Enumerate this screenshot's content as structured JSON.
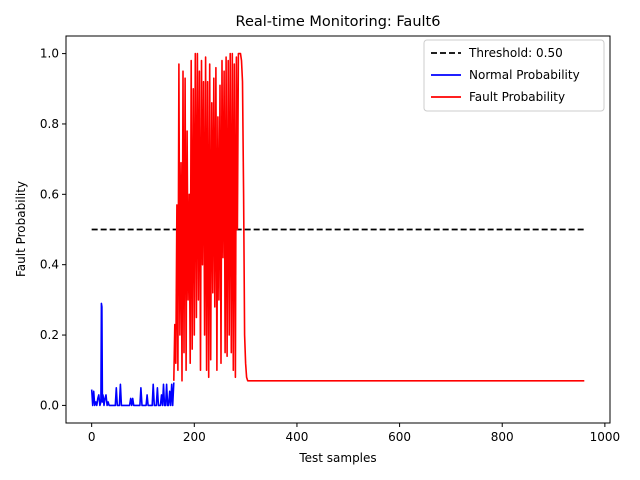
{
  "chart_data": {
    "type": "line",
    "title": "Real-time Monitoring: Fault6",
    "xlabel": "Test samples",
    "ylabel": "Fault Probability",
    "xlim": [
      -50,
      1010
    ],
    "ylim": [
      -0.05,
      1.05
    ],
    "xticks": [
      0,
      200,
      400,
      600,
      800,
      1000
    ],
    "xtick_labels": [
      "0",
      "200",
      "400",
      "600",
      "800",
      "1000"
    ],
    "yticks": [
      0.0,
      0.2,
      0.4,
      0.6,
      0.8,
      1.0
    ],
    "ytick_labels": [
      "0.0",
      "0.2",
      "0.4",
      "0.6",
      "0.8",
      "1.0"
    ],
    "grid": false,
    "legend_position": "top-right",
    "threshold": {
      "name": "Threshold: 0.50",
      "value": 0.5,
      "x": [
        0,
        960
      ],
      "color": "#000000",
      "style": "dashed"
    },
    "series": [
      {
        "name": "Normal Probability",
        "color": "#0000ff",
        "x": [
          0,
          2,
          4,
          6,
          8,
          10,
          12,
          14,
          16,
          18,
          19,
          20,
          21,
          22,
          24,
          26,
          28,
          30,
          32,
          34,
          36,
          38,
          40,
          42,
          44,
          46,
          48,
          50,
          52,
          54,
          56,
          58,
          60,
          62,
          64,
          66,
          68,
          70,
          72,
          74,
          76,
          78,
          80,
          82,
          84,
          86,
          88,
          90,
          92,
          94,
          96,
          98,
          100,
          102,
          104,
          106,
          108,
          110,
          112,
          114,
          116,
          118,
          120,
          122,
          124,
          126,
          128,
          130,
          132,
          134,
          136,
          138,
          140,
          142,
          144,
          146,
          148,
          150,
          152,
          154,
          156,
          158,
          160
        ],
        "values": [
          0.045,
          0.0,
          0.04,
          0.0,
          0.01,
          0.0,
          0.02,
          0.03,
          0.0,
          0.01,
          0.29,
          0.28,
          0.01,
          0.03,
          0.0,
          0.02,
          0.03,
          0.0,
          0.01,
          0.0,
          0.0,
          0.0,
          0.0,
          0.0,
          0.0,
          0.0,
          0.05,
          0.0,
          0.0,
          0.0,
          0.06,
          0.0,
          0.0,
          0.0,
          0.0,
          0.0,
          0.0,
          0.0,
          0.0,
          0.0,
          0.02,
          0.0,
          0.02,
          0.0,
          0.0,
          0.0,
          0.0,
          0.0,
          0.0,
          0.0,
          0.05,
          0.0,
          0.0,
          0.0,
          0.0,
          0.0,
          0.03,
          0.0,
          0.0,
          0.0,
          0.0,
          0.0,
          0.06,
          0.0,
          0.0,
          0.0,
          0.05,
          0.0,
          0.0,
          0.0,
          0.03,
          0.0,
          0.06,
          0.0,
          0.0,
          0.06,
          0.0,
          0.0,
          0.04,
          0.0,
          0.06,
          0.0,
          0.065
        ]
      },
      {
        "name": "Fault Probability",
        "color": "#ff0000",
        "x": [
          160,
          162,
          164,
          166,
          168,
          170,
          172,
          174,
          176,
          178,
          180,
          182,
          184,
          186,
          188,
          190,
          192,
          194,
          196,
          198,
          200,
          202,
          204,
          206,
          208,
          210,
          212,
          214,
          216,
          218,
          220,
          222,
          224,
          226,
          228,
          230,
          232,
          234,
          236,
          238,
          240,
          242,
          244,
          246,
          248,
          250,
          252,
          254,
          256,
          258,
          260,
          262,
          264,
          266,
          268,
          270,
          272,
          274,
          276,
          278,
          280,
          282,
          284,
          286,
          288,
          290,
          292,
          294,
          296,
          298,
          300,
          302,
          304,
          306,
          310,
          320,
          340,
          380,
          400,
          500,
          600,
          700,
          800,
          900,
          960
        ],
        "values": [
          0.07,
          0.23,
          0.12,
          0.57,
          0.1,
          0.97,
          0.2,
          0.69,
          0.07,
          0.95,
          0.15,
          0.93,
          0.1,
          0.78,
          0.3,
          0.6,
          0.12,
          0.98,
          0.16,
          0.9,
          0.2,
          1.0,
          0.25,
          1.0,
          0.3,
          0.95,
          0.1,
          0.98,
          0.4,
          0.92,
          0.2,
          0.99,
          0.1,
          0.92,
          0.08,
          0.97,
          0.13,
          0.86,
          0.32,
          0.93,
          0.28,
          0.96,
          0.1,
          0.82,
          0.3,
          0.91,
          0.12,
          0.98,
          0.42,
          0.95,
          0.15,
          0.99,
          0.14,
          0.98,
          0.2,
          1.0,
          0.15,
          1.0,
          0.1,
          0.97,
          0.08,
          0.99,
          0.5,
          1.0,
          1.0,
          1.0,
          0.98,
          0.92,
          0.6,
          0.2,
          0.12,
          0.08,
          0.07,
          0.07,
          0.07,
          0.07,
          0.07,
          0.07,
          0.07,
          0.07,
          0.07,
          0.07,
          0.07,
          0.07,
          0.07
        ]
      }
    ]
  }
}
